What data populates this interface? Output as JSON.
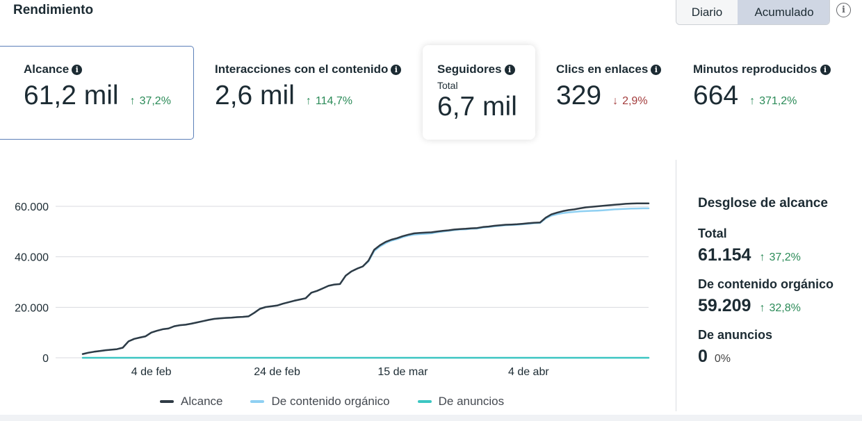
{
  "header": {
    "title": "Rendimiento",
    "toggle": [
      "Diario",
      "Acumulado"
    ],
    "info_icon": "info-circle-icon",
    "info_glyph": "i"
  },
  "metrics": [
    {
      "label": "Alcance",
      "value": "61,2 mil",
      "change": "37,2%",
      "direction": "up"
    },
    {
      "label": "Interacciones con el contenido",
      "value": "2,6 mil",
      "change": "114,7%",
      "direction": "up"
    },
    {
      "label": "Seguidores",
      "sublabel": "Total",
      "value": "6,7 mil"
    },
    {
      "label": "Clics en enlaces",
      "value": "329",
      "change": "2,9%",
      "direction": "down"
    },
    {
      "label": "Minutos reproducidos",
      "value": "664",
      "change": "371,2%",
      "direction": "up"
    }
  ],
  "breakdown": {
    "title": "Desglose de alcance",
    "items": [
      {
        "label": "Total",
        "value": "61.154",
        "change": "37,2%",
        "direction": "up"
      },
      {
        "label": "De contenido orgánico",
        "value": "59.209",
        "change": "32,8%",
        "direction": "up"
      },
      {
        "label": "De anuncios",
        "value": "0",
        "change": "0%",
        "direction": "none"
      }
    ]
  },
  "colors": {
    "alcance": "#2f3b45",
    "organico": "#8fd0f2",
    "anuncios": "#3cc6c2",
    "up": "#2a8a57",
    "down": "#a33c3c",
    "grid": "#d8dadf"
  },
  "chart_data": {
    "type": "line",
    "title": "",
    "xlabel": "",
    "ylabel": "",
    "ylim": [
      0,
      60000
    ],
    "yticks": [
      0,
      20000,
      40000,
      60000
    ],
    "ytick_labels": [
      "0",
      "20.000",
      "40.000",
      "60.000"
    ],
    "x_count": 100,
    "xticks": [
      {
        "index": 12,
        "label": "4 de feb"
      },
      {
        "index": 34,
        "label": "24 de feb"
      },
      {
        "index": 56,
        "label": "15 de mar"
      },
      {
        "index": 78,
        "label": "4 de abr"
      }
    ],
    "series": [
      {
        "name": "Alcance",
        "values": [
          1500,
          2000,
          2400,
          2700,
          3000,
          3200,
          3400,
          4000,
          6500,
          7500,
          8000,
          8500,
          10000,
          10700,
          11300,
          11600,
          12500,
          12900,
          13100,
          13500,
          14000,
          14500,
          15000,
          15400,
          15600,
          15800,
          15900,
          16100,
          16200,
          16400,
          17800,
          19400,
          20100,
          20400,
          20700,
          21400,
          22000,
          22600,
          23100,
          23600,
          25800,
          26500,
          27500,
          28500,
          29000,
          29200,
          32500,
          34200,
          35300,
          36200,
          38500,
          42800,
          44600,
          45900,
          46800,
          47400,
          48200,
          48800,
          49300,
          49500,
          49600,
          49700,
          50000,
          50300,
          50500,
          50800,
          51000,
          51100,
          51300,
          51400,
          51800,
          52000,
          52300,
          52500,
          52700,
          52800,
          52900,
          53100,
          53300,
          53500,
          53600,
          55500,
          56800,
          57500,
          58100,
          58500,
          58800,
          59200,
          59600,
          59800,
          60000,
          60200,
          60400,
          60600,
          60800,
          61000,
          61100,
          61150,
          61154,
          61154
        ]
      },
      {
        "name": "De contenido orgánico",
        "values": [
          1500,
          2000,
          2400,
          2700,
          3000,
          3200,
          3400,
          4000,
          6500,
          7500,
          8000,
          8500,
          10000,
          10700,
          11300,
          11600,
          12500,
          12900,
          13100,
          13500,
          14000,
          14500,
          15000,
          15400,
          15600,
          15800,
          15900,
          16100,
          16200,
          16400,
          17800,
          19400,
          20100,
          20400,
          20700,
          21400,
          22000,
          22600,
          23100,
          23600,
          25800,
          26500,
          27500,
          28500,
          29000,
          29200,
          32500,
          34200,
          35300,
          36200,
          38200,
          42300,
          44100,
          45400,
          46400,
          47000,
          47800,
          48400,
          48800,
          49000,
          49100,
          49300,
          49700,
          50000,
          50300,
          50600,
          50800,
          50900,
          51100,
          51200,
          51600,
          51800,
          52100,
          52300,
          52500,
          52600,
          52700,
          52900,
          53100,
          53300,
          53400,
          55200,
          56300,
          56900,
          57300,
          57600,
          57800,
          58000,
          58100,
          58200,
          58300,
          58400,
          58600,
          58800,
          58900,
          59000,
          59100,
          59150,
          59200,
          59209
        ]
      },
      {
        "name": "De anuncios",
        "values": [
          0,
          0,
          0,
          0,
          0,
          0,
          0,
          0,
          0,
          0,
          0,
          0,
          0,
          0,
          0,
          0,
          0,
          0,
          0,
          0,
          0,
          0,
          0,
          0,
          0,
          0,
          0,
          0,
          0,
          0,
          0,
          0,
          0,
          0,
          0,
          0,
          0,
          0,
          0,
          0,
          0,
          0,
          0,
          0,
          0,
          0,
          0,
          0,
          0,
          0,
          0,
          0,
          0,
          0,
          0,
          0,
          0,
          0,
          0,
          0,
          0,
          0,
          0,
          0,
          0,
          0,
          0,
          0,
          0,
          0,
          0,
          0,
          0,
          0,
          0,
          0,
          0,
          0,
          0,
          0,
          0,
          0,
          0,
          0,
          0,
          0,
          0,
          0,
          0,
          0,
          0,
          0,
          0,
          0,
          0,
          0,
          0,
          0,
          0,
          0
        ]
      }
    ],
    "legend": [
      "Alcance",
      "De contenido orgánico",
      "De anuncios"
    ]
  }
}
